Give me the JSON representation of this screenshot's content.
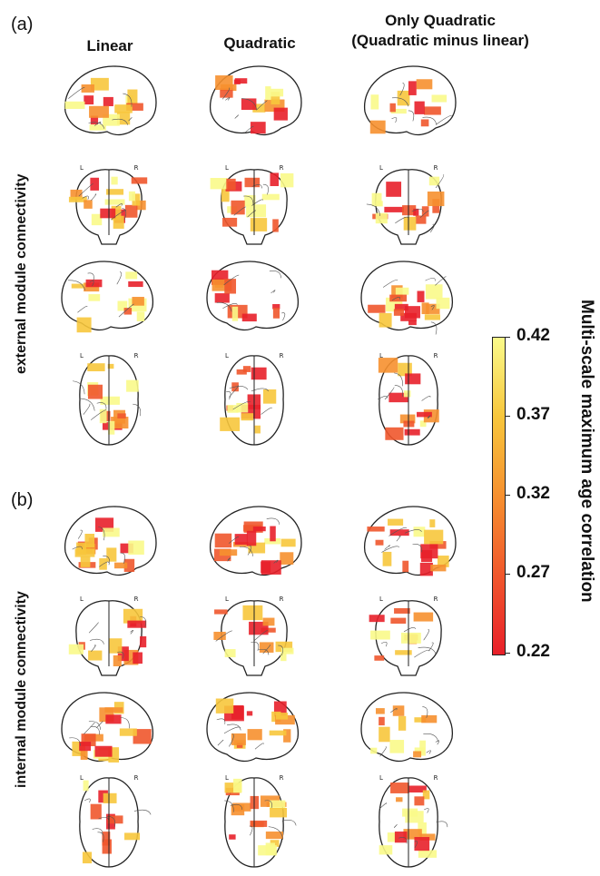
{
  "panels": [
    {
      "letter": "(a)",
      "row_label": "external module connectivity"
    },
    {
      "letter": "(b)",
      "row_label": "internal module connectivity"
    }
  ],
  "columns": [
    "Linear",
    "Quadratic",
    "Only Quadratic",
    "(Quadratic minus linear)"
  ],
  "orientation_labels": {
    "left": "L",
    "right": "R"
  },
  "colorbar": {
    "label": "Multi-scale maximum age correlation",
    "ticks": [
      "0.42",
      "0.37",
      "0.32",
      "0.27",
      "0.22"
    ],
    "min": 0.22,
    "max": 0.42,
    "colors": [
      "#e8202a",
      "#f0572c",
      "#f6902f",
      "#f7c63c",
      "#fafa8a"
    ]
  }
}
